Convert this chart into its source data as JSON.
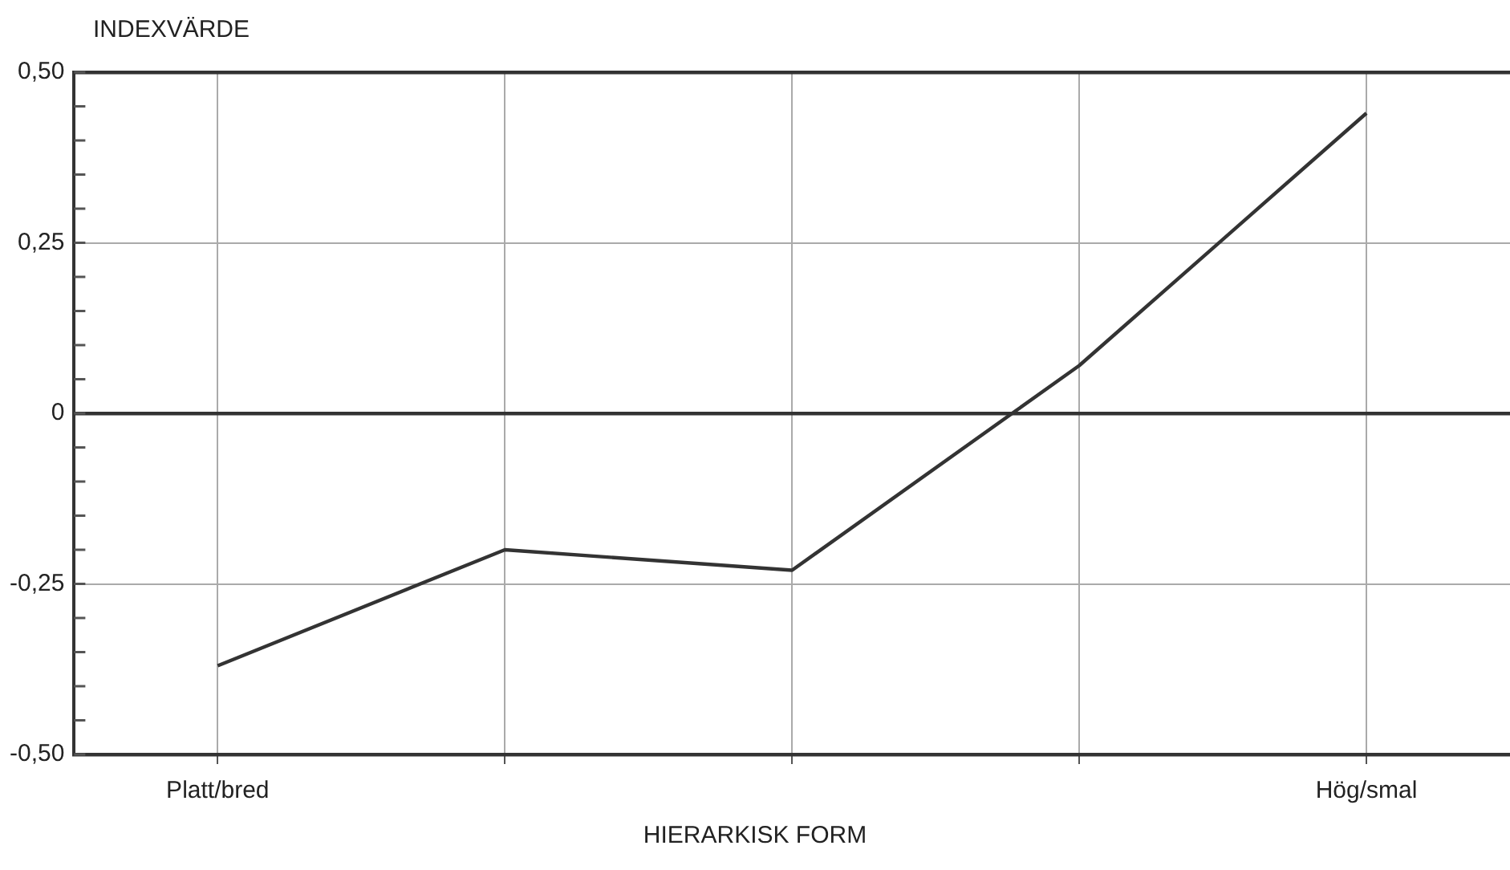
{
  "chart_data": {
    "type": "line",
    "xlabel": "HIERARKISK FORM",
    "ylabel": "INDEXVÄRDE",
    "categories": [
      "Platt/bred",
      null,
      null,
      null,
      "Hög/smal"
    ],
    "series": [
      {
        "color": "#333333",
        "values": [
          -0.37,
          -0.2,
          -0.23,
          0.07,
          0.44
        ]
      }
    ],
    "ylim": [
      -0.5,
      0.5
    ],
    "yticks": [
      {
        "value": -0.5,
        "label": "-0,50"
      },
      {
        "value": -0.45,
        "label": null
      },
      {
        "value": -0.4,
        "label": null
      },
      {
        "value": -0.35,
        "label": null
      },
      {
        "value": -0.3,
        "label": null
      },
      {
        "value": -0.25,
        "label": "-0,25"
      },
      {
        "value": -0.2,
        "label": null
      },
      {
        "value": -0.15,
        "label": null
      },
      {
        "value": -0.1,
        "label": null
      },
      {
        "value": -0.05,
        "label": null
      },
      0,
      {
        "value": 0.05,
        "label": null
      },
      {
        "value": 0.1,
        "label": null
      },
      {
        "value": 0.15,
        "label": null
      },
      {
        "value": 0.2,
        "label": null
      },
      {
        "value": 0.25,
        "label": "0,25"
      },
      {
        "value": 0.3,
        "label": null
      },
      {
        "value": 0.35,
        "label": null
      },
      {
        "value": 0.4,
        "label": null
      },
      {
        "value": 0.45,
        "label": null
      },
      {
        "value": 0.5,
        "label": "0,50"
      }
    ],
    "grid": true,
    "marker": "none",
    "line_style": "solid",
    "legend": false
  }
}
